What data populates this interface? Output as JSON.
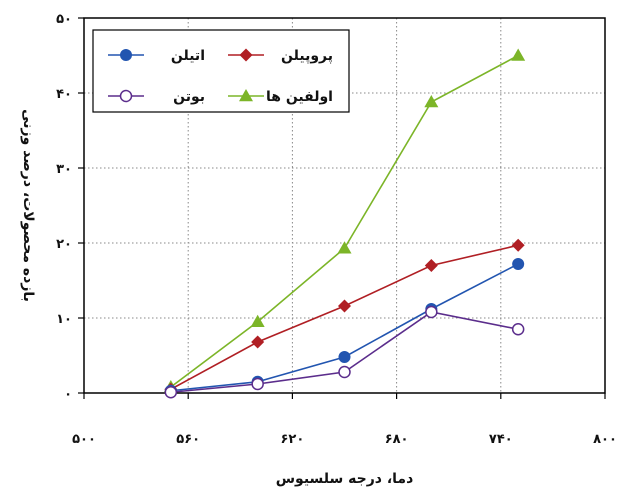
{
  "chart_data": {
    "type": "line",
    "xlabel": "دما، درجه سلسیوس",
    "ylabel": "بازده محصولات، درصد وزنی",
    "xlim": [
      500,
      800
    ],
    "ylim": [
      0,
      50
    ],
    "x_ticks": [
      500,
      560,
      620,
      680,
      740,
      800
    ],
    "y_ticks": [
      0,
      10,
      20,
      30,
      40,
      50
    ],
    "x_tick_labels": [
      "۵۰۰",
      "۵۶۰",
      "۶۲۰",
      "۶۸۰",
      "۷۴۰",
      "۸۰۰"
    ],
    "y_tick_labels": [
      "۰",
      "۱۰",
      "۲۰",
      "۳۰",
      "۴۰",
      "۵۰"
    ],
    "grid": true,
    "legend_position": "top-left",
    "series": [
      {
        "name": "اتیلن",
        "color": "#2255b0",
        "marker": "circle-filled",
        "x": [
          550,
          600,
          650,
          700,
          750
        ],
        "y": [
          0.3,
          1.5,
          4.8,
          11.2,
          17.2
        ]
      },
      {
        "name": "پروپیلن",
        "color": "#b01f24",
        "marker": "diamond",
        "x": [
          550,
          600,
          650,
          700,
          750
        ],
        "y": [
          0.5,
          6.8,
          11.6,
          17.0,
          19.7
        ]
      },
      {
        "name": "بوتن",
        "color": "#5b2d8c",
        "marker": "circle-open",
        "x": [
          550,
          600,
          650,
          700,
          750
        ],
        "y": [
          0.1,
          1.2,
          2.8,
          10.8,
          8.5
        ]
      },
      {
        "name": "اولفین ها",
        "color": "#7cb528",
        "marker": "triangle",
        "x": [
          550,
          600,
          650,
          700,
          750
        ],
        "y": [
          0.8,
          9.5,
          19.3,
          38.8,
          45.0
        ]
      }
    ]
  }
}
